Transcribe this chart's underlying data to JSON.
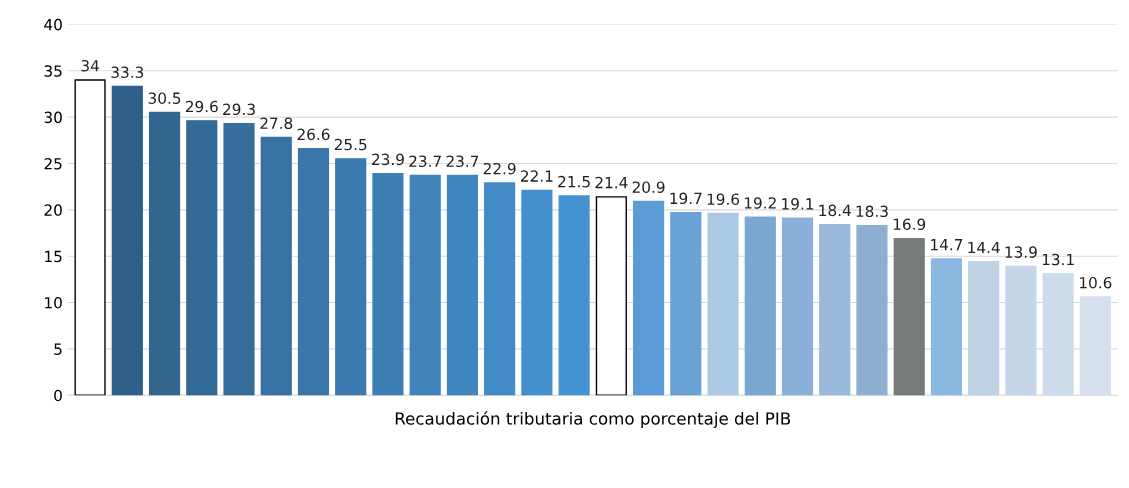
{
  "chart_data": {
    "type": "bar",
    "xlabel": "Recaudación tributaria como porcentaje del PIB",
    "categories": [
      null,
      null,
      null,
      null,
      null,
      null,
      null,
      null,
      null,
      null,
      null,
      null,
      null,
      null,
      null,
      null,
      null,
      null,
      null,
      null,
      null,
      null,
      null,
      null,
      null,
      null,
      null,
      null
    ],
    "values": [
      34,
      33.3,
      30.5,
      29.6,
      29.3,
      27.8,
      26.6,
      25.5,
      23.9,
      23.7,
      23.7,
      22.9,
      22.1,
      21.5,
      21.4,
      20.9,
      19.7,
      19.6,
      19.2,
      19.1,
      18.4,
      18.3,
      16.9,
      14.7,
      14.4,
      13.9,
      13.1,
      10.6
    ],
    "colors": [
      "#ffffff",
      "#2e5f8a",
      "#32668f",
      "#336a96",
      "#356e9c",
      "#3872a2",
      "#3a76a8",
      "#3b7aae",
      "#3d7fb4",
      "#3f83ba",
      "#4087c0",
      "#428bc6",
      "#438fcc",
      "#4592d1",
      "#ffffff",
      "#5b9bd5",
      "#6aa3d8",
      "#acc9e3",
      "#7aa6d2",
      "#89b0d8",
      "#9ab9dd",
      "#90aed1",
      "#767b7b",
      "#8ab8e0",
      "#c0d3e6",
      "#c4d6e8",
      "#cddcea",
      "#d5e0ec"
    ],
    "ylim": [
      0,
      40
    ],
    "yticks": [
      0,
      5,
      10,
      15,
      20,
      25,
      30,
      35,
      40
    ],
    "grid": "y",
    "data_labels": true
  }
}
